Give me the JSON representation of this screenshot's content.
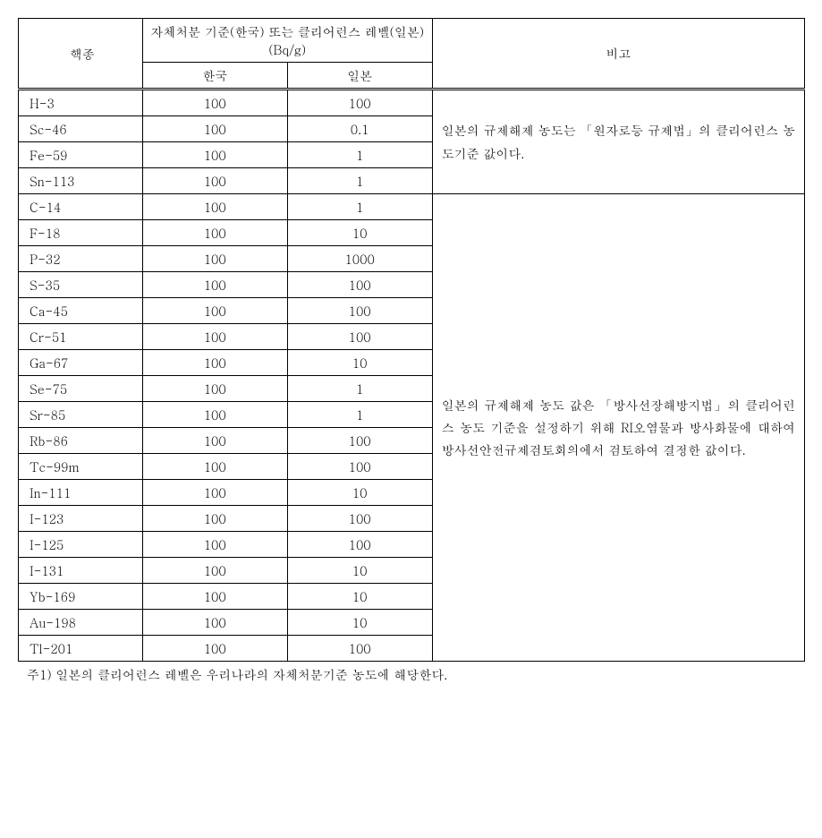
{
  "headers": {
    "nuclide": "핵종",
    "criteria_title": "자체처분 기준(한국) 또는 클리어런스 레벨(일본) (Bq/g)",
    "korea": "한국",
    "japan": "일본",
    "note": "비고"
  },
  "group1": {
    "rows": [
      {
        "nuclide": "H-3",
        "korea": "100",
        "japan": "100"
      },
      {
        "nuclide": "Sc-46",
        "korea": "100",
        "japan": "0.1"
      },
      {
        "nuclide": "Fe-59",
        "korea": "100",
        "japan": "1"
      },
      {
        "nuclide": "Sn-113",
        "korea": "100",
        "japan": "1"
      }
    ],
    "note": "일본의 규제해제 농도는 「원자로등 규제법」의 클리어런스 농도기준 값이다."
  },
  "group2": {
    "rows": [
      {
        "nuclide": "C-14",
        "korea": "100",
        "japan": "1"
      },
      {
        "nuclide": "F-18",
        "korea": "100",
        "japan": "10"
      },
      {
        "nuclide": "P-32",
        "korea": "100",
        "japan": "1000"
      },
      {
        "nuclide": "S-35",
        "korea": "100",
        "japan": "100"
      },
      {
        "nuclide": "Ca-45",
        "korea": "100",
        "japan": "100"
      },
      {
        "nuclide": "Cr-51",
        "korea": "100",
        "japan": "100"
      },
      {
        "nuclide": "Ga-67",
        "korea": "100",
        "japan": "10"
      },
      {
        "nuclide": "Se-75",
        "korea": "100",
        "japan": "1"
      },
      {
        "nuclide": "Sr-85",
        "korea": "100",
        "japan": "1"
      },
      {
        "nuclide": "Rb-86",
        "korea": "100",
        "japan": "100"
      },
      {
        "nuclide": "Tc-99m",
        "korea": "100",
        "japan": "100"
      },
      {
        "nuclide": "In-111",
        "korea": "100",
        "japan": "10"
      },
      {
        "nuclide": "I-123",
        "korea": "100",
        "japan": "100"
      },
      {
        "nuclide": "I-125",
        "korea": "100",
        "japan": "100"
      },
      {
        "nuclide": "I-131",
        "korea": "100",
        "japan": "10"
      },
      {
        "nuclide": "Yb-169",
        "korea": "100",
        "japan": "10"
      },
      {
        "nuclide": "Au-198",
        "korea": "100",
        "japan": "10"
      },
      {
        "nuclide": "Tl-201",
        "korea": "100",
        "japan": "100"
      }
    ],
    "note": "일본의 규제해제 농도 값은 「방사선장해방지법」의 클리어런스 농도 기준을 설정하기 위해 RI오염물과 방사화물에 대하여 방사선안전규제검토회의에서 검토하여 결정한 값이다."
  },
  "footnote": "주1) 일본의 클리어런스 레벨은 우리나라의 자체처분기준 농도에 해당한다."
}
